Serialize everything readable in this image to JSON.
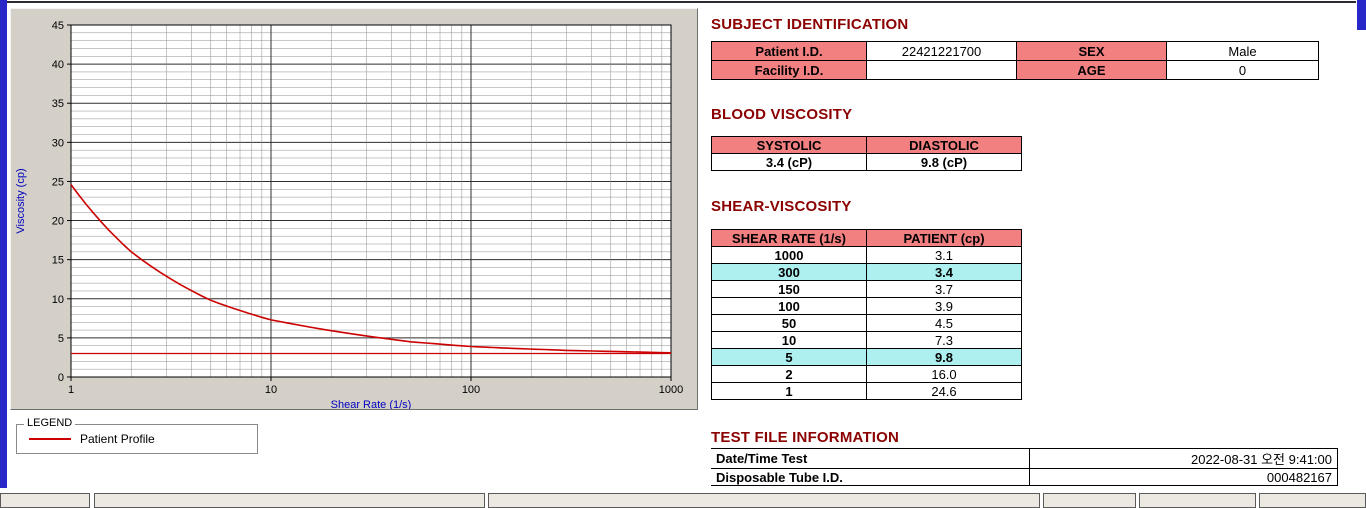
{
  "window": {
    "legend_title": "LEGEND",
    "legend_item": "Patient Profile"
  },
  "colors": {
    "title": "#8B0000",
    "table_header_bg": "#F28080",
    "highlight_bg": "#AEEFEF",
    "chart_line": "#CC0000",
    "axis_label": "#0000BF",
    "panel_bg": "#D4D0C8",
    "frame_blue": "#2828C8"
  },
  "chart_data": {
    "type": "line",
    "title": "",
    "xlabel": "Shear Rate (1/s)",
    "ylabel": "Viscosity (cp)",
    "x_scale": "log",
    "xlim": [
      1,
      1000
    ],
    "ylim": [
      0,
      45
    ],
    "x_ticks": [
      1,
      10,
      100,
      1000
    ],
    "y_ticks": [
      0,
      5,
      10,
      15,
      20,
      25,
      30,
      35,
      40,
      45
    ],
    "grid": "dense (1-unit horizontal lines, log-decade minor vertical lines)",
    "legend_position": "below-left box",
    "series": [
      {
        "name": "Patient Profile",
        "x": [
          1,
          2,
          5,
          10,
          50,
          100,
          150,
          300,
          1000
        ],
        "y": [
          24.6,
          16.0,
          9.8,
          7.3,
          4.5,
          3.9,
          3.7,
          3.4,
          3.1
        ]
      }
    ],
    "reference_line": 3.0
  },
  "sections": {
    "subject": {
      "title": "SUBJECT IDENTIFICATION",
      "rows": [
        [
          "Patient I.D.",
          "22421221700",
          "SEX",
          "Male"
        ],
        [
          "Facility I.D.",
          "",
          "AGE",
          "0"
        ]
      ]
    },
    "blood": {
      "title": "BLOOD VISCOSITY",
      "headers": [
        "SYSTOLIC",
        "DIASTOLIC"
      ],
      "values": [
        "3.4 (cP)",
        "9.8 (cP)"
      ]
    },
    "shear": {
      "title": "SHEAR-VISCOSITY",
      "headers": [
        "SHEAR RATE (1/s)",
        "PATIENT (cp)"
      ],
      "rows": [
        {
          "rate": "1000",
          "value": "3.1",
          "highlight": false
        },
        {
          "rate": "300",
          "value": "3.4",
          "highlight": true
        },
        {
          "rate": "150",
          "value": "3.7",
          "highlight": false
        },
        {
          "rate": "100",
          "value": "3.9",
          "highlight": false
        },
        {
          "rate": "50",
          "value": "4.5",
          "highlight": false
        },
        {
          "rate": "10",
          "value": "7.3",
          "highlight": false
        },
        {
          "rate": "5",
          "value": "9.8",
          "highlight": true
        },
        {
          "rate": "2",
          "value": "16.0",
          "highlight": false
        },
        {
          "rate": "1",
          "value": "24.6",
          "highlight": false
        }
      ]
    },
    "testfile": {
      "title": "TEST FILE INFORMATION",
      "rows": [
        {
          "label": "Date/Time Test",
          "value": "2022-08-31  오전 9:41:00"
        },
        {
          "label": "Disposable Tube I.D.",
          "value": "000482167"
        }
      ]
    }
  }
}
